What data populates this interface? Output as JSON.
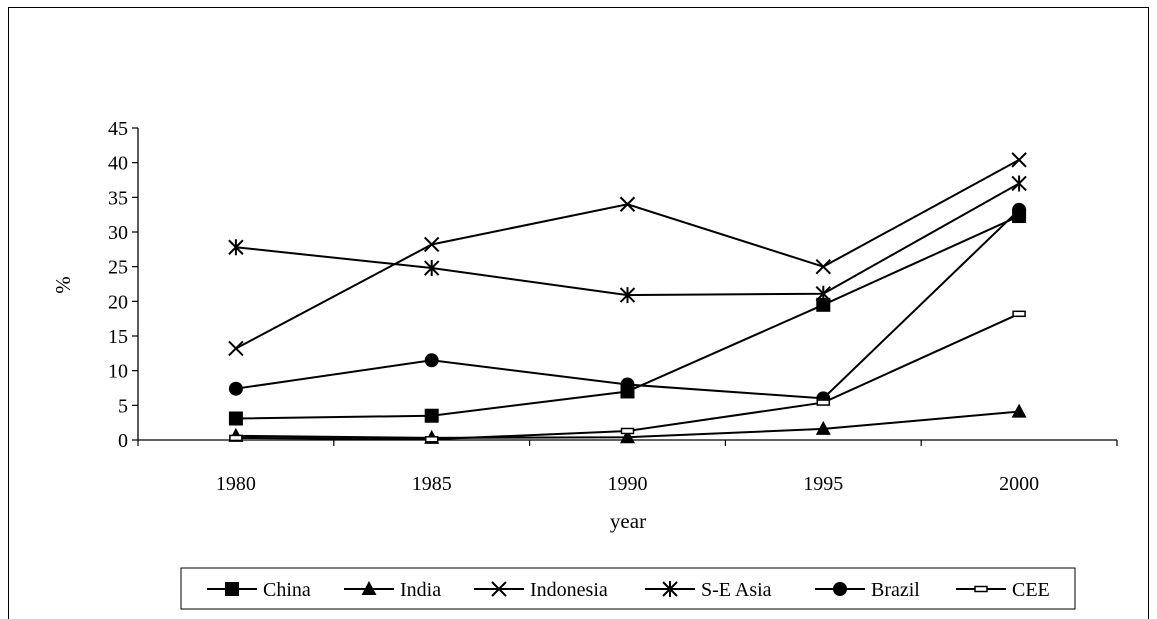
{
  "chart_data": {
    "type": "line",
    "xlabel": "year",
    "ylabel": "%",
    "categories": [
      "1980",
      "1985",
      "1990",
      "1995",
      "2000"
    ],
    "ylim": [
      0,
      45
    ],
    "yticks": [
      "0",
      "5",
      "10",
      "15",
      "20",
      "25",
      "30",
      "35",
      "40",
      "45"
    ],
    "grid": false,
    "legend_position": "bottom",
    "series": [
      {
        "name": "China",
        "marker": "square",
        "values": [
          3.1,
          3.5,
          7.0,
          19.5,
          32.3
        ]
      },
      {
        "name": "India",
        "marker": "triangle",
        "values": [
          0.6,
          0.3,
          0.4,
          1.6,
          4.1
        ]
      },
      {
        "name": "Indonesia",
        "marker": "x",
        "values": [
          13.2,
          28.2,
          34.0,
          25.0,
          40.4
        ]
      },
      {
        "name": "S-E Asia",
        "marker": "star",
        "values": [
          27.8,
          24.8,
          20.9,
          21.1,
          37.0
        ]
      },
      {
        "name": "Brazil",
        "marker": "circle",
        "values": [
          7.4,
          11.5,
          8.0,
          6.0,
          33.2
        ]
      },
      {
        "name": "CEE",
        "marker": "dash",
        "values": [
          0.3,
          0.1,
          1.3,
          5.4,
          18.2
        ]
      }
    ],
    "colors": {
      "line": "#000000",
      "background": "#ffffff"
    }
  }
}
